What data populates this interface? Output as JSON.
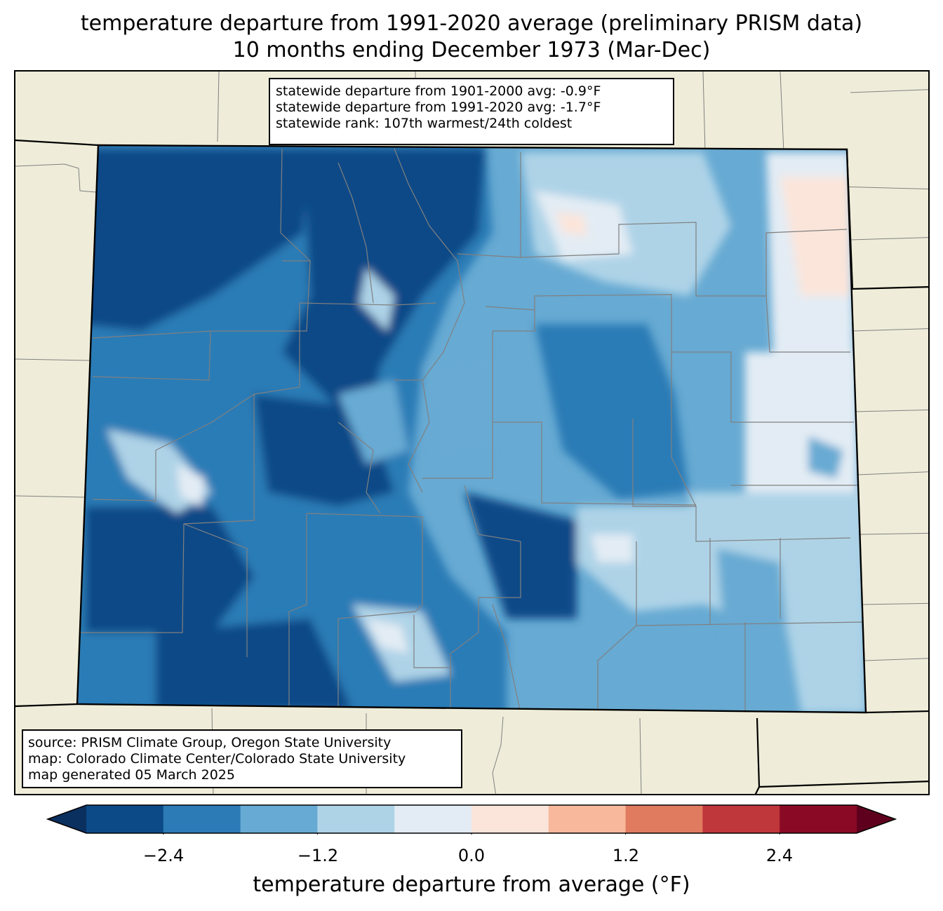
{
  "title": {
    "line1": "temperature departure from 1991-2020 average (preliminary PRISM data)",
    "line2": "10 months ending December 1973 (Mar-Dec)"
  },
  "stats": {
    "dep_1901_2000": "statewide departure from 1901-2000 avg: -0.9°F",
    "dep_1991_2020": "statewide departure from 1991-2020 avg: -1.7°F",
    "rank": "statewide rank: 107th warmest/24th coldest"
  },
  "source": {
    "line1": "source: PRISM Climate Group, Oregon State University",
    "line2": "map: Colorado Climate Center/Colorado State University",
    "line3": "map generated 05 March 2025"
  },
  "colorbar": {
    "label": "temperature departure from average (°F)",
    "ticks": [
      "−2.4",
      "−1.2",
      "0.0",
      "1.2",
      "2.4"
    ],
    "bins": [
      -3.0,
      -2.4,
      -1.8,
      -1.2,
      -0.6,
      0.0,
      0.6,
      1.2,
      1.8,
      2.4,
      3.0
    ],
    "colors": [
      "#0c4a87",
      "#2c7bb6",
      "#67aad3",
      "#aed3e7",
      "#e3ecf4",
      "#fbe5da",
      "#f7b89b",
      "#e07b60",
      "#c0373b",
      "#8a0a26"
    ],
    "under_color": "#0a3060",
    "over_color": "#5e001d"
  },
  "map": {
    "background": "#efedd9",
    "state_border": "#000000",
    "county_border": "#808080"
  }
}
